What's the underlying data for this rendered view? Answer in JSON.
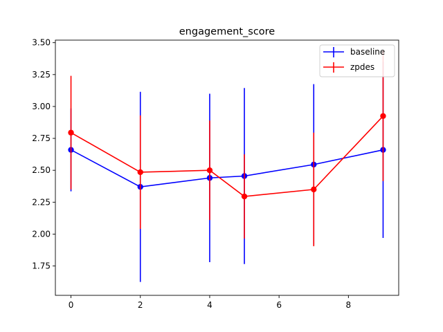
{
  "chart_data": {
    "type": "line",
    "title": "engagement_score",
    "xlabel": "",
    "ylabel": "",
    "xlim": [
      -0.45,
      9.45
    ],
    "ylim": [
      1.52,
      3.52
    ],
    "xticks": [
      0,
      2,
      4,
      6,
      8
    ],
    "yticks": [
      1.75,
      2.0,
      2.25,
      2.5,
      2.75,
      3.0,
      3.25,
      3.5
    ],
    "xtick_labels": [
      "0",
      "2",
      "4",
      "6",
      "8"
    ],
    "ytick_labels": [
      "1.75",
      "2.00",
      "2.25",
      "2.50",
      "2.75",
      "3.00",
      "3.25",
      "3.50"
    ],
    "grid": false,
    "legend_position": "top-right",
    "series": [
      {
        "name": "baseline",
        "color": "#0000ff",
        "x": [
          0,
          2,
          4,
          5,
          7,
          9
        ],
        "y": [
          2.66,
          2.37,
          2.44,
          2.455,
          2.545,
          2.66
        ],
        "yerr": [
          0.325,
          0.745,
          0.66,
          0.69,
          0.63,
          0.69
        ]
      },
      {
        "name": "zpdes",
        "color": "#ff0000",
        "x": [
          0,
          2,
          4,
          5,
          7,
          9
        ],
        "y": [
          2.795,
          2.485,
          2.5,
          2.295,
          2.35,
          2.925
        ],
        "yerr": [
          0.445,
          0.445,
          0.39,
          0.33,
          0.445,
          0.51
        ]
      }
    ]
  }
}
